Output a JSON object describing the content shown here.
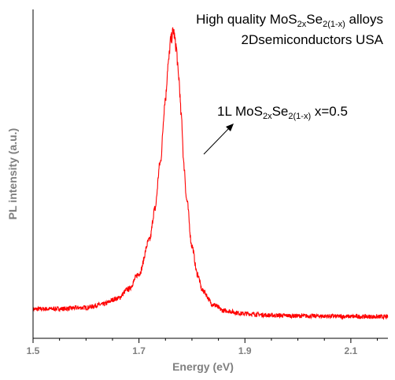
{
  "chart_data": {
    "type": "line",
    "title": "",
    "xlabel": "Energy (eV)",
    "ylabel": "PL intensity (a.u.)",
    "xlim": [
      1.5,
      2.17
    ],
    "ylim": [
      0,
      1.07
    ],
    "x_ticks": [
      "1.5",
      "1.7",
      "1.9",
      "2.1"
    ],
    "y_ticks": [],
    "grid": false,
    "legend": "none",
    "series": [
      {
        "color": "#ff0000",
        "peak_x": 1.765,
        "peak_y": 1.0,
        "baseline_low_energy": 0.095,
        "baseline_high_energy": 0.07,
        "x": [
          1.5,
          1.55,
          1.6,
          1.63,
          1.66,
          1.68,
          1.7,
          1.72,
          1.73,
          1.74,
          1.75,
          1.755,
          1.76,
          1.765,
          1.77,
          1.775,
          1.78,
          1.785,
          1.79,
          1.8,
          1.81,
          1.82,
          1.84,
          1.86,
          1.9,
          1.95,
          2.0,
          2.05,
          2.1,
          2.17
        ],
        "y": [
          0.095,
          0.096,
          0.1,
          0.11,
          0.13,
          0.16,
          0.21,
          0.32,
          0.42,
          0.57,
          0.78,
          0.89,
          0.97,
          1.0,
          0.95,
          0.85,
          0.72,
          0.56,
          0.45,
          0.3,
          0.21,
          0.155,
          0.11,
          0.09,
          0.08,
          0.075,
          0.073,
          0.072,
          0.071,
          0.07
        ]
      }
    ],
    "annotations": [
      {
        "lines": [
          [
            {
              "text": "High quality MoS"
            },
            {
              "text": "2x",
              "sub": true
            },
            {
              "text": "Se"
            },
            {
              "text": "2(1-x)",
              "sub": true
            },
            {
              "text": " alloys"
            }
          ],
          [
            {
              "text": "2Dsemiconductors USA"
            }
          ]
        ]
      },
      {
        "lines": [
          [
            {
              "text": "1L MoS"
            },
            {
              "text": "2x",
              "sub": true
            },
            {
              "text": "Se"
            },
            {
              "text": "2(1-x)",
              "sub": true
            },
            {
              "text": " x=0.5"
            }
          ]
        ]
      }
    ]
  }
}
